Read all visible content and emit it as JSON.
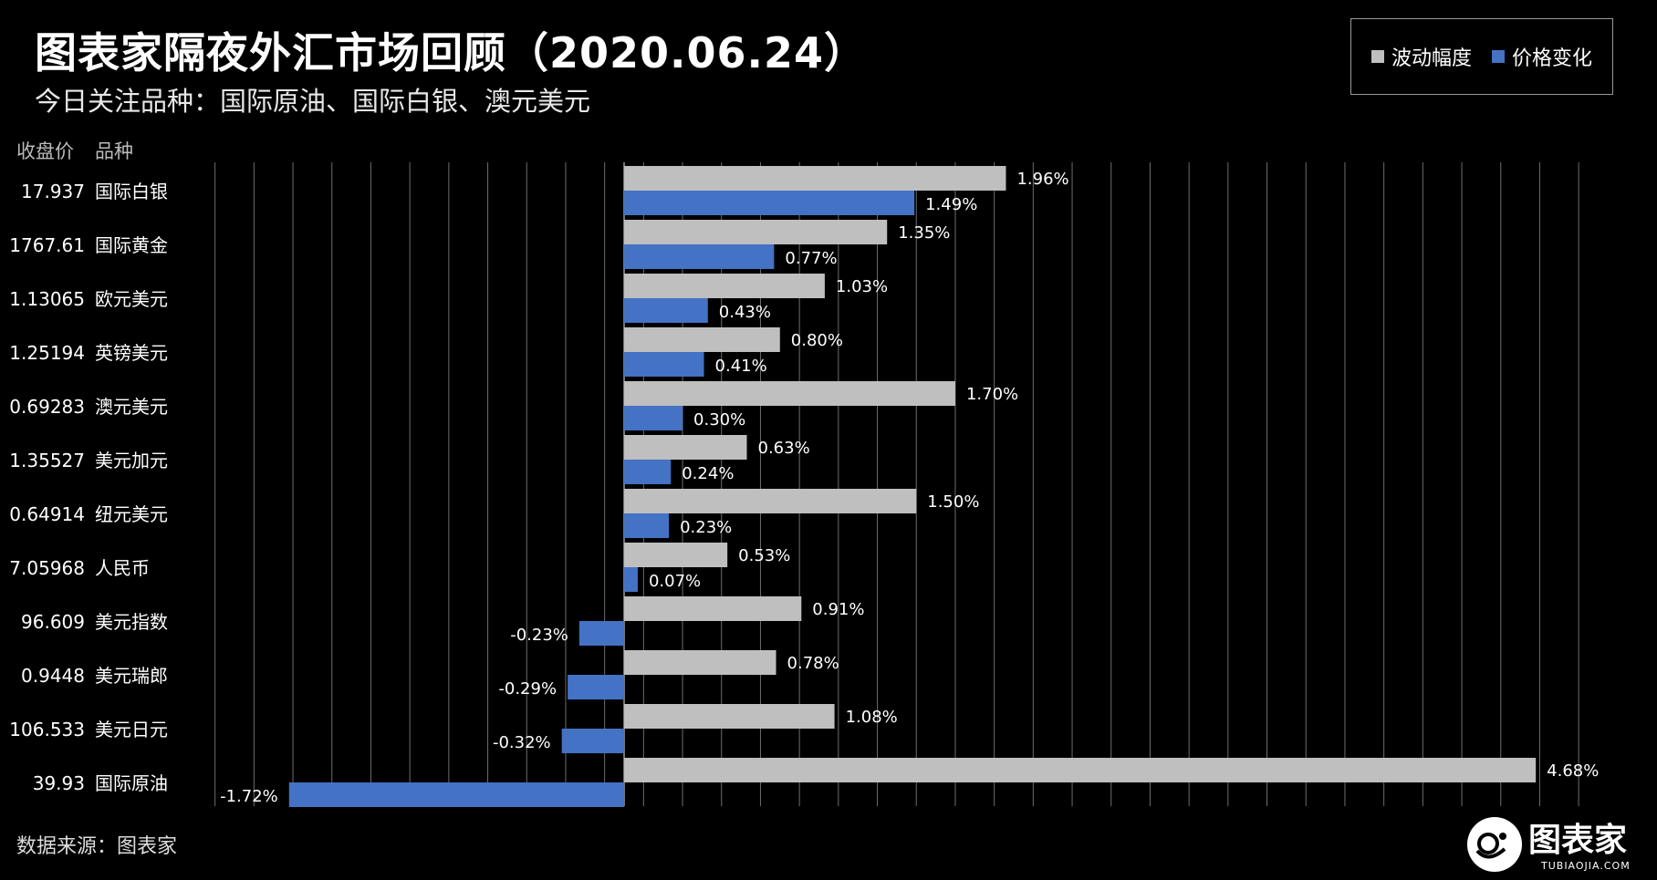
{
  "title": "图表家隔夜外汇市场回顾（2020.06.24）",
  "subtitle": "今日关注品种：国际原油、国际白银、澳元美元",
  "col_headers": {
    "price": "收盘价",
    "name": "品种"
  },
  "source": "数据来源：图表家",
  "logo": {
    "text": "图表家",
    "sub": "TUBIAOJIA.COM"
  },
  "legend": [
    {
      "label": "波动幅度",
      "color": "#bfbfbf"
    },
    {
      "label": "价格变化",
      "color": "#4472c4"
    }
  ],
  "chart_data": {
    "type": "bar",
    "orientation": "horizontal",
    "categories": [
      "国际白银",
      "国际黄金",
      "欧元美元",
      "英镑美元",
      "澳元美元",
      "美元加元",
      "纽元美元",
      "人民币",
      "美元指数",
      "美元瑞郎",
      "美元日元",
      "国际原油"
    ],
    "closing_prices": [
      "17.937",
      "1767.61",
      "1.13065",
      "1.25194",
      "0.69283",
      "1.35527",
      "0.64914",
      "7.05968",
      "96.609",
      "0.9448",
      "106.533",
      "39.93"
    ],
    "series": [
      {
        "name": "波动幅度",
        "color": "#bfbfbf",
        "values": [
          1.96,
          1.35,
          1.03,
          0.8,
          1.7,
          0.63,
          1.5,
          0.53,
          0.91,
          0.78,
          1.08,
          4.68
        ],
        "labels": [
          "1.96%",
          "1.35%",
          "1.03%",
          "0.80%",
          "1.70%",
          "0.63%",
          "1.50%",
          "0.53%",
          "0.91%",
          "0.78%",
          "1.08%",
          "4.68%"
        ]
      },
      {
        "name": "价格变化",
        "color": "#4472c4",
        "values": [
          1.49,
          0.77,
          0.43,
          0.41,
          0.3,
          0.24,
          0.23,
          0.07,
          -0.23,
          -0.29,
          -0.32,
          -1.72
        ],
        "labels": [
          "1.49%",
          "0.77%",
          "0.43%",
          "0.41%",
          "0.30%",
          "0.24%",
          "0.23%",
          "0.07%",
          "-0.23%",
          "-0.29%",
          "-0.32%",
          "-1.72%"
        ]
      }
    ],
    "xlim": [
      -2.2,
      5.0
    ],
    "grid": true,
    "legend_position": "top-right"
  }
}
